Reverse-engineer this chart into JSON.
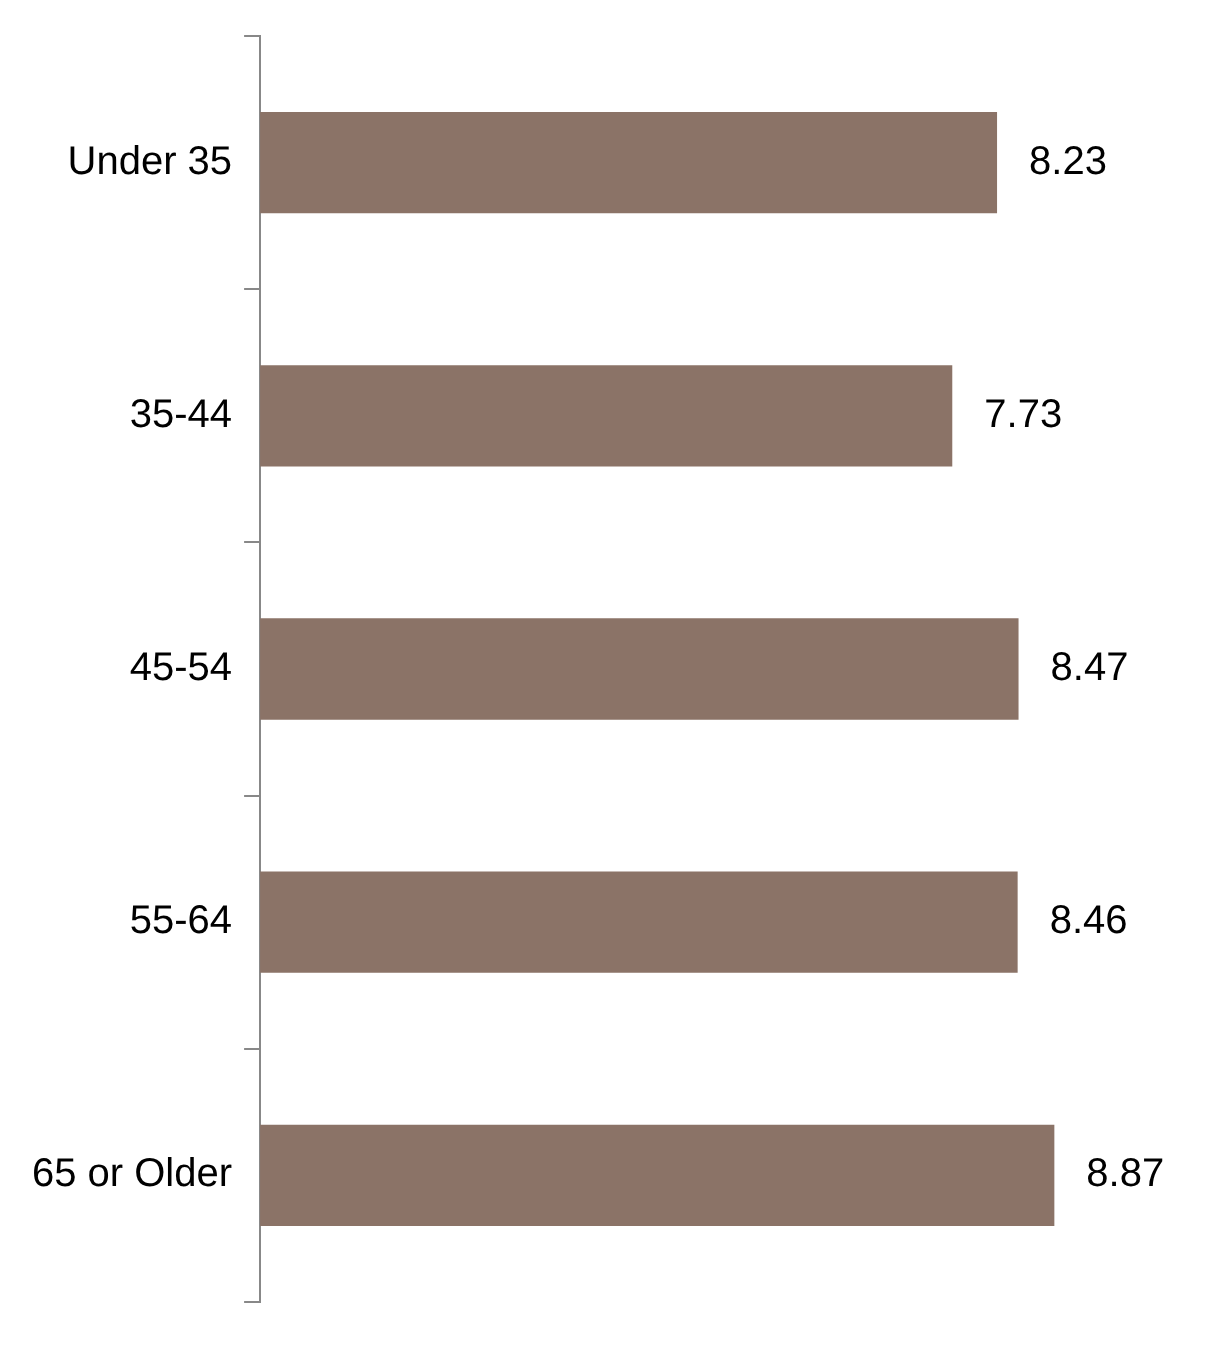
{
  "chart_data": {
    "type": "bar",
    "orientation": "horizontal",
    "categories": [
      "Under 35",
      "35-44",
      "45-54",
      "55-64",
      "65 or Older"
    ],
    "values": [
      8.23,
      7.73,
      8.47,
      8.46,
      8.87
    ],
    "color": "#8b7367",
    "data_labels": true,
    "grid": false,
    "legend": false,
    "tick_labels": "y"
  }
}
